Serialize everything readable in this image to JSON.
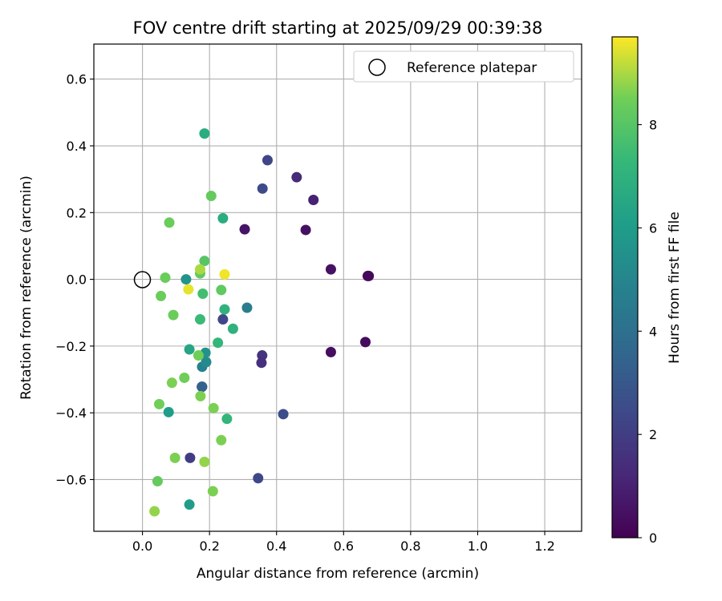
{
  "chart_data": {
    "type": "scatter",
    "title": "FOV centre drift starting at 2025/09/29 00:39:38",
    "xlabel": "Angular distance from reference (arcmin)",
    "ylabel": "Rotation from reference (arcmin)",
    "xlim": [
      -0.145,
      1.31
    ],
    "ylim": [
      -0.755,
      0.705
    ],
    "xticks": [
      0.0,
      0.2,
      0.4,
      0.6,
      0.8,
      1.0,
      1.2
    ],
    "yticks": [
      -0.6,
      -0.4,
      -0.2,
      0.0,
      0.2,
      0.4,
      0.6
    ],
    "xtick_labels": [
      "0.0",
      "0.2",
      "0.4",
      "0.6",
      "0.8",
      "1.0",
      "1.2"
    ],
    "ytick_labels": [
      "−0.6",
      "−0.4",
      "−0.2",
      "0.0",
      "0.2",
      "0.4",
      "0.6"
    ],
    "grid": true,
    "legend": {
      "position": "upper-right",
      "label": "Reference platepar",
      "marker": "hollow-circle"
    },
    "reference_point": {
      "x": 0.0,
      "y": 0.0
    },
    "colorbar": {
      "label": "Hours from first FF file",
      "min": 0,
      "max": 9.7,
      "ticks": [
        0,
        2,
        4,
        6,
        8
      ],
      "tick_labels": [
        "0",
        "2",
        "4",
        "6",
        "8"
      ],
      "colormap": "viridis"
    },
    "points": [
      {
        "x": 0.675,
        "y": 0.01,
        "c": 0.2
      },
      {
        "x": 0.672,
        "y": 0.01,
        "c": 0.25
      },
      {
        "x": 0.665,
        "y": -0.188,
        "c": 0.3
      },
      {
        "x": 0.562,
        "y": 0.03,
        "c": 0.5
      },
      {
        "x": 0.562,
        "y": -0.218,
        "c": 0.4
      },
      {
        "x": 0.51,
        "y": 0.238,
        "c": 1.0
      },
      {
        "x": 0.487,
        "y": 0.148,
        "c": 0.5
      },
      {
        "x": 0.46,
        "y": 0.306,
        "c": 1.3
      },
      {
        "x": 0.305,
        "y": 0.15,
        "c": 0.6
      },
      {
        "x": 0.357,
        "y": -0.228,
        "c": 1.6
      },
      {
        "x": 0.355,
        "y": -0.25,
        "c": 1.5
      },
      {
        "x": 0.373,
        "y": 0.357,
        "c": 2.3
      },
      {
        "x": 0.358,
        "y": 0.272,
        "c": 2.5
      },
      {
        "x": 0.42,
        "y": -0.404,
        "c": 2.6
      },
      {
        "x": 0.345,
        "y": -0.596,
        "c": 2.4
      },
      {
        "x": 0.24,
        "y": -0.12,
        "c": 2.4
      },
      {
        "x": 0.142,
        "y": -0.535,
        "c": 2.0
      },
      {
        "x": 0.178,
        "y": -0.322,
        "c": 3.0
      },
      {
        "x": 0.177,
        "y": -0.322,
        "c": 3.4
      },
      {
        "x": 0.312,
        "y": -0.085,
        "c": 4.6
      },
      {
        "x": 0.178,
        "y": -0.262,
        "c": 4.8
      },
      {
        "x": 0.19,
        "y": -0.248,
        "c": 5.2
      },
      {
        "x": 0.188,
        "y": -0.22,
        "c": 5.6
      },
      {
        "x": 0.13,
        "y": 0.0,
        "c": 5.6
      },
      {
        "x": 0.14,
        "y": -0.675,
        "c": 6.0
      },
      {
        "x": 0.078,
        "y": -0.398,
        "c": 6.0
      },
      {
        "x": 0.14,
        "y": -0.21,
        "c": 6.4
      },
      {
        "x": 0.185,
        "y": 0.437,
        "c": 6.7
      },
      {
        "x": 0.24,
        "y": 0.183,
        "c": 6.8
      },
      {
        "x": 0.245,
        "y": -0.09,
        "c": 7.0
      },
      {
        "x": 0.27,
        "y": -0.148,
        "c": 7.0
      },
      {
        "x": 0.252,
        "y": -0.418,
        "c": 7.2
      },
      {
        "x": 0.225,
        "y": -0.19,
        "c": 7.2
      },
      {
        "x": 0.172,
        "y": -0.12,
        "c": 7.4
      },
      {
        "x": 0.18,
        "y": -0.043,
        "c": 7.6
      },
      {
        "x": 0.185,
        "y": 0.055,
        "c": 8.0
      },
      {
        "x": 0.172,
        "y": 0.018,
        "c": 8.2
      },
      {
        "x": 0.235,
        "y": -0.032,
        "c": 8.2
      },
      {
        "x": 0.205,
        "y": 0.25,
        "c": 8.3
      },
      {
        "x": 0.08,
        "y": 0.17,
        "c": 8.4
      },
      {
        "x": 0.068,
        "y": 0.005,
        "c": 8.4
      },
      {
        "x": 0.055,
        "y": -0.05,
        "c": 8.4
      },
      {
        "x": 0.092,
        "y": -0.107,
        "c": 8.4
      },
      {
        "x": 0.167,
        "y": -0.228,
        "c": 8.5
      },
      {
        "x": 0.125,
        "y": -0.295,
        "c": 8.5
      },
      {
        "x": 0.088,
        "y": -0.31,
        "c": 8.6
      },
      {
        "x": 0.173,
        "y": -0.35,
        "c": 8.6
      },
      {
        "x": 0.212,
        "y": -0.386,
        "c": 8.6
      },
      {
        "x": 0.05,
        "y": -0.374,
        "c": 8.5
      },
      {
        "x": 0.235,
        "y": -0.482,
        "c": 8.6
      },
      {
        "x": 0.097,
        "y": -0.535,
        "c": 8.6
      },
      {
        "x": 0.185,
        "y": -0.547,
        "c": 8.8
      },
      {
        "x": 0.045,
        "y": -0.605,
        "c": 8.3
      },
      {
        "x": 0.21,
        "y": -0.635,
        "c": 8.6
      },
      {
        "x": 0.036,
        "y": -0.695,
        "c": 8.8
      },
      {
        "x": 0.172,
        "y": 0.03,
        "c": 9.0
      },
      {
        "x": 0.245,
        "y": 0.015,
        "c": 9.6
      },
      {
        "x": 0.137,
        "y": -0.03,
        "c": 9.5
      }
    ]
  }
}
